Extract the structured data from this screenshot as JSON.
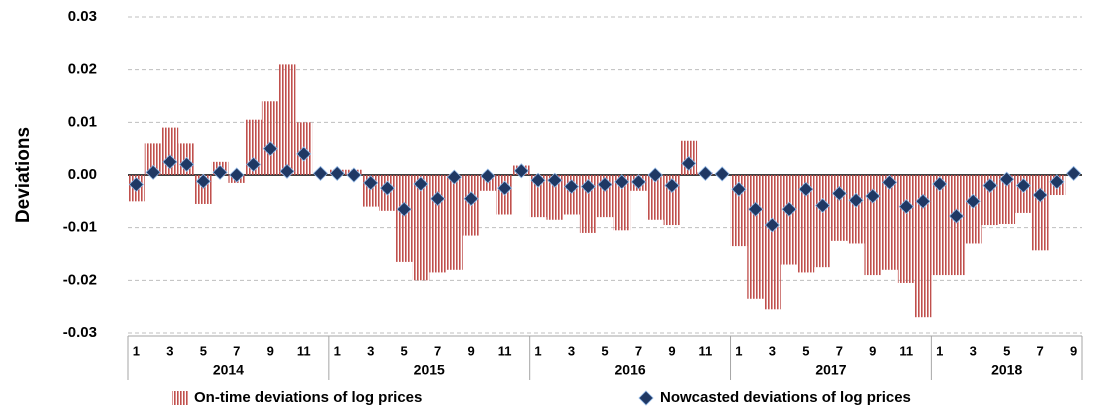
{
  "chart_data": {
    "type": "bar-scatter",
    "y_label": "Deviations",
    "categories": [
      "1",
      null,
      "3",
      null,
      "5",
      null,
      "7",
      null,
      "9",
      null,
      "11",
      null,
      "1",
      null,
      "3",
      null,
      "5",
      null,
      "7",
      null,
      "9",
      null,
      "11",
      null,
      "1",
      null,
      "3",
      null,
      "5",
      null,
      "7",
      null,
      "9",
      null,
      "11",
      null,
      "1",
      null,
      "3",
      null,
      "5",
      null,
      "7",
      null,
      "9",
      null,
      "11",
      null,
      "1",
      null,
      "3",
      null,
      "5",
      null,
      "7",
      null,
      "9"
    ],
    "groups": [
      "2014",
      "2015",
      "2016",
      "2017",
      "2018"
    ],
    "series": [
      {
        "name": "On-time deviations of log prices",
        "color": "#c0504d",
        "kind": "bar",
        "values": [
          -0.005,
          0.006,
          0.009,
          0.006,
          -0.0055,
          0.0025,
          -0.0015,
          0.0105,
          0.014,
          0.021,
          0.01,
          0,
          0.001,
          0.001,
          -0.006,
          -0.0068,
          -0.0165,
          -0.02,
          -0.0185,
          -0.018,
          -0.0115,
          -0.003,
          -0.0075,
          0.0018,
          -0.008,
          -0.0085,
          -0.0075,
          -0.011,
          -0.008,
          -0.0105,
          -0.003,
          -0.0085,
          -0.0095,
          0.0065,
          0.0005,
          0,
          -0.0135,
          -0.0235,
          -0.0255,
          -0.017,
          -0.0185,
          -0.0175,
          -0.0125,
          -0.013,
          -0.019,
          -0.018,
          -0.0205,
          -0.027,
          -0.019,
          -0.019,
          -0.013,
          -0.0095,
          -0.0093,
          -0.0072,
          -0.0143,
          -0.0038,
          0
        ]
      },
      {
        "name": "Nowcasted deviations of log prices",
        "color": "#1f3864",
        "kind": "diamond",
        "values": [
          -0.0018,
          0.0005,
          0.0025,
          0.002,
          -0.0012,
          0.0005,
          0,
          0.002,
          0.005,
          0.0007,
          0.004,
          0.0003,
          0.0003,
          0,
          -0.0015,
          -0.0025,
          -0.0065,
          -0.0017,
          -0.0045,
          -0.0004,
          -0.0045,
          -0.0002,
          -0.0025,
          0.0008,
          -0.001,
          -0.001,
          -0.0022,
          -0.0022,
          -0.0018,
          -0.0013,
          -0.0013,
          0,
          -0.002,
          0.0022,
          0.0003,
          0.0002,
          -0.0027,
          -0.0065,
          -0.0095,
          -0.0065,
          -0.0027,
          -0.0058,
          -0.0035,
          -0.0048,
          -0.004,
          -0.0014,
          -0.006,
          -0.005,
          -0.0017,
          -0.0078,
          -0.005,
          -0.002,
          -0.0008,
          -0.002,
          -0.0038,
          -0.0013,
          0.0003
        ]
      }
    ],
    "ylim": [
      -0.03,
      0.03
    ],
    "yticks": [
      -0.03,
      -0.02,
      -0.01,
      {
        "value": 0,
        "label": "0.00"
      },
      0.01,
      0.02,
      0.03
    ],
    "grid": true,
    "legend": "bottom"
  }
}
